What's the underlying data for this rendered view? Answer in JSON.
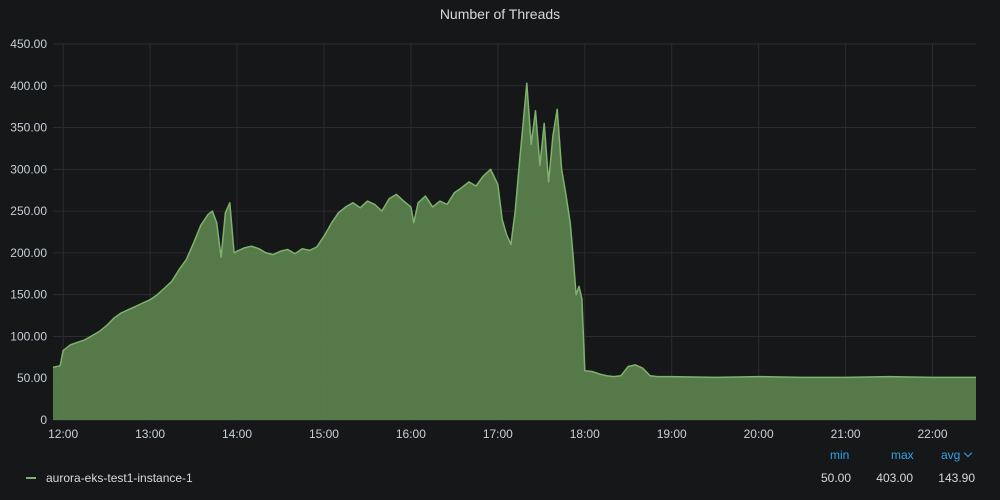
{
  "panel": {
    "title": "Number of Threads"
  },
  "colors": {
    "background": "#161719",
    "grid": "#2c2d31",
    "series_line": "#7eb26d",
    "series_fill": "#5a7e4d",
    "tick_text": "#c7d0d9",
    "legend_header": "#33a2e5"
  },
  "legend": {
    "columns": [
      {
        "key": "min",
        "label": "min"
      },
      {
        "key": "max",
        "label": "max"
      },
      {
        "key": "avg",
        "label": "avg"
      }
    ],
    "sort_icon": "chevron-down-icon",
    "series": [
      {
        "name": "aurora-eks-test1-instance-1",
        "min": "50.00",
        "max": "403.00",
        "avg": "143.90"
      }
    ]
  },
  "chart_data": {
    "type": "area",
    "title": "Number of Threads",
    "xlabel": "",
    "ylabel": "",
    "x_ticks": [
      "12:00",
      "13:00",
      "14:00",
      "15:00",
      "16:00",
      "17:00",
      "18:00",
      "19:00",
      "20:00",
      "21:00",
      "22:00"
    ],
    "y_ticks": [
      "0",
      "50.00",
      "100.00",
      "150.00",
      "200.00",
      "250.00",
      "300.00",
      "350.00",
      "400.00",
      "450.00"
    ],
    "ylim": [
      0,
      450
    ],
    "xlim": [
      "11:53",
      "22:30"
    ],
    "grid": true,
    "legend": "bottom-left",
    "series": [
      {
        "name": "aurora-eks-test1-instance-1",
        "points": [
          [
            "11:53",
            63
          ],
          [
            "11:58",
            65
          ],
          [
            "12:00",
            83
          ],
          [
            "12:05",
            90
          ],
          [
            "12:10",
            93
          ],
          [
            "12:15",
            96
          ],
          [
            "12:20",
            101
          ],
          [
            "12:25",
            106
          ],
          [
            "12:30",
            113
          ],
          [
            "12:35",
            122
          ],
          [
            "12:40",
            128
          ],
          [
            "12:45",
            132
          ],
          [
            "12:50",
            136
          ],
          [
            "12:55",
            140
          ],
          [
            "13:00",
            144
          ],
          [
            "13:05",
            150
          ],
          [
            "13:10",
            158
          ],
          [
            "13:15",
            166
          ],
          [
            "13:20",
            180
          ],
          [
            "13:25",
            192
          ],
          [
            "13:30",
            212
          ],
          [
            "13:35",
            233
          ],
          [
            "13:40",
            246
          ],
          [
            "13:43",
            250
          ],
          [
            "13:46",
            236
          ],
          [
            "13:49",
            195
          ],
          [
            "13:52",
            248
          ],
          [
            "13:55",
            260
          ],
          [
            "13:58",
            200
          ],
          [
            "14:00",
            202
          ],
          [
            "14:05",
            206
          ],
          [
            "14:10",
            208
          ],
          [
            "14:15",
            205
          ],
          [
            "14:20",
            200
          ],
          [
            "14:25",
            198
          ],
          [
            "14:30",
            202
          ],
          [
            "14:35",
            204
          ],
          [
            "14:40",
            199
          ],
          [
            "14:45",
            205
          ],
          [
            "14:50",
            203
          ],
          [
            "14:55",
            207
          ],
          [
            "15:00",
            220
          ],
          [
            "15:05",
            235
          ],
          [
            "15:10",
            248
          ],
          [
            "15:15",
            255
          ],
          [
            "15:20",
            260
          ],
          [
            "15:25",
            254
          ],
          [
            "15:30",
            262
          ],
          [
            "15:35",
            258
          ],
          [
            "15:40",
            250
          ],
          [
            "15:45",
            265
          ],
          [
            "15:50",
            270
          ],
          [
            "15:55",
            262
          ],
          [
            "16:00",
            255
          ],
          [
            "16:02",
            236
          ],
          [
            "16:05",
            260
          ],
          [
            "16:10",
            268
          ],
          [
            "16:15",
            255
          ],
          [
            "16:20",
            262
          ],
          [
            "16:25",
            258
          ],
          [
            "16:30",
            272
          ],
          [
            "16:35",
            278
          ],
          [
            "16:40",
            285
          ],
          [
            "16:45",
            280
          ],
          [
            "16:50",
            292
          ],
          [
            "16:55",
            300
          ],
          [
            "17:00",
            282
          ],
          [
            "17:03",
            240
          ],
          [
            "17:06",
            222
          ],
          [
            "17:09",
            210
          ],
          [
            "17:12",
            250
          ],
          [
            "17:15",
            310
          ],
          [
            "17:18",
            365
          ],
          [
            "17:20",
            403
          ],
          [
            "17:23",
            330
          ],
          [
            "17:26",
            370
          ],
          [
            "17:29",
            305
          ],
          [
            "17:32",
            355
          ],
          [
            "17:35",
            285
          ],
          [
            "17:38",
            340
          ],
          [
            "17:41",
            372
          ],
          [
            "17:44",
            300
          ],
          [
            "17:47",
            270
          ],
          [
            "17:50",
            235
          ],
          [
            "17:52",
            195
          ],
          [
            "17:54",
            150
          ],
          [
            "17:56",
            160
          ],
          [
            "17:58",
            145
          ],
          [
            "18:00",
            59
          ],
          [
            "18:05",
            58
          ],
          [
            "18:10",
            55
          ],
          [
            "18:15",
            53
          ],
          [
            "18:20",
            52
          ],
          [
            "18:25",
            53
          ],
          [
            "18:30",
            64
          ],
          [
            "18:35",
            66
          ],
          [
            "18:40",
            62
          ],
          [
            "18:45",
            53
          ],
          [
            "18:50",
            52
          ],
          [
            "19:00",
            52
          ],
          [
            "19:30",
            51
          ],
          [
            "20:00",
            52
          ],
          [
            "20:30",
            51
          ],
          [
            "21:00",
            51
          ],
          [
            "21:30",
            52
          ],
          [
            "22:00",
            51
          ],
          [
            "22:30",
            51
          ]
        ]
      }
    ]
  }
}
